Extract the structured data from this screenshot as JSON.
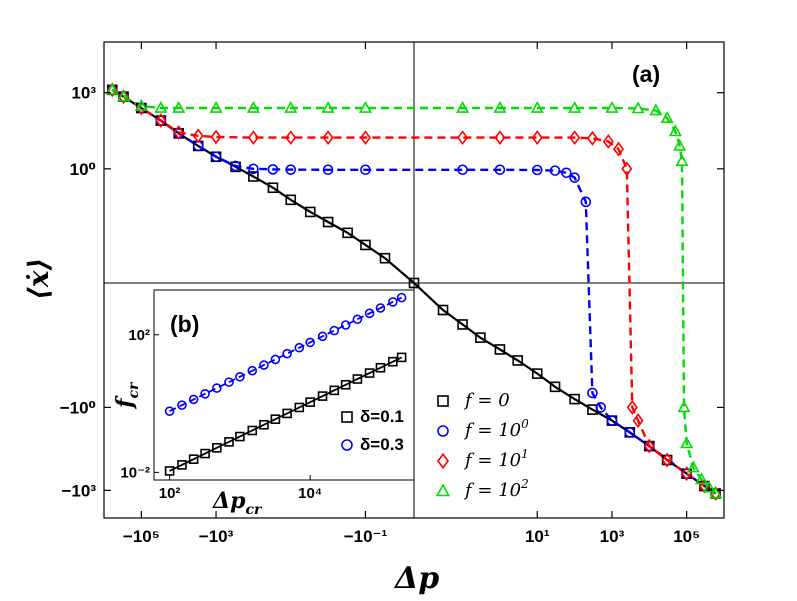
{
  "chart_data": [
    {
      "id": "a",
      "type": "scatter",
      "panel_label": "(a)",
      "xlabel": "Δp",
      "ylabel": "⟨ẋ⟩",
      "x_scale": "symlog",
      "y_scale": "symlog",
      "xlim": [
        -1000000,
        1000000
      ],
      "ylim": [
        -10000,
        100000
      ],
      "x_ticks": [
        -100000,
        -1000,
        -0.1,
        10,
        1000,
        100000
      ],
      "x_tick_labels": [
        "−10⁵",
        "−10³",
        "−10⁻¹",
        "10¹",
        "10³",
        "10⁵"
      ],
      "y_ticks": [
        -1000,
        -1,
        1,
        1000
      ],
      "y_tick_labels": [
        "−10³",
        "−10⁰",
        "10⁰",
        "10³"
      ],
      "legend_position": "bottom-right",
      "series": [
        {
          "name": "f = 0",
          "label_main": "f = 0",
          "label_sup": "",
          "marker": "square",
          "color": "#000000",
          "line": "solid",
          "points": [
            [
              -600000,
              1300
            ],
            [
              -300000,
              700
            ],
            [
              -100000,
              250
            ],
            [
              -30000,
              80
            ],
            [
              -10000,
              25
            ],
            [
              -3000,
              8
            ],
            [
              -1000,
              3
            ],
            [
              -300,
              1.2
            ],
            [
              -100,
              0.5
            ],
            [
              -30,
              0.18
            ],
            [
              -10,
              0.06
            ],
            [
              -3,
              0.02
            ],
            [
              -1,
              0.008
            ],
            [
              -0.3,
              0.003
            ],
            [
              -0.1,
              0.001
            ],
            [
              -0.03,
              0.0003
            ],
            [
              0,
              0
            ],
            [
              0.03,
              -0.0003
            ],
            [
              0.1,
              -0.001
            ],
            [
              0.3,
              -0.003
            ],
            [
              1,
              -0.008
            ],
            [
              3,
              -0.02
            ],
            [
              10,
              -0.06
            ],
            [
              30,
              -0.18
            ],
            [
              100,
              -0.5
            ],
            [
              300,
              -1.2
            ],
            [
              1000,
              -3
            ],
            [
              3000,
              -8
            ],
            [
              10000,
              -25
            ],
            [
              30000,
              -80
            ],
            [
              100000,
              -250
            ],
            [
              300000,
              -700
            ],
            [
              600000,
              -1300
            ]
          ]
        },
        {
          "name": "f = 10^0",
          "label_main": "f = 10",
          "label_sup": "0",
          "marker": "circle",
          "color": "#0000ff",
          "line": "dashed",
          "points": [
            [
              -600000,
              1300
            ],
            [
              -300000,
              700
            ],
            [
              -100000,
              250
            ],
            [
              -30000,
              80
            ],
            [
              -10000,
              25
            ],
            [
              -3000,
              8
            ],
            [
              -1000,
              3
            ],
            [
              -300,
              1.3
            ],
            [
              -100,
              1
            ],
            [
              -30,
              0.95
            ],
            [
              -10,
              0.93
            ],
            [
              -1,
              0.92
            ],
            [
              -0.1,
              0.92
            ],
            [
              0.1,
              0.92
            ],
            [
              1,
              0.92
            ],
            [
              10,
              0.9
            ],
            [
              30,
              0.85
            ],
            [
              60,
              0.7
            ],
            [
              100,
              0.45
            ],
            [
              200,
              0.05
            ],
            [
              300,
              -0.3
            ],
            [
              500,
              -1
            ],
            [
              1000,
              -3
            ],
            [
              3000,
              -8
            ],
            [
              10000,
              -25
            ],
            [
              100000,
              -250
            ],
            [
              600000,
              -1300
            ]
          ]
        },
        {
          "name": "f = 10^1",
          "label_main": "f = 10",
          "label_sup": "1",
          "marker": "diamond",
          "color": "#ff0000",
          "line": "dashed",
          "points": [
            [
              -600000,
              1300
            ],
            [
              -300000,
              700
            ],
            [
              -100000,
              250
            ],
            [
              -30000,
              80
            ],
            [
              -10000,
              27
            ],
            [
              -3000,
              20
            ],
            [
              -1000,
              18
            ],
            [
              -100,
              17
            ],
            [
              -10,
              17
            ],
            [
              -1,
              17
            ],
            [
              -0.1,
              17
            ],
            [
              0.1,
              17
            ],
            [
              1,
              17
            ],
            [
              10,
              17
            ],
            [
              100,
              17
            ],
            [
              300,
              16
            ],
            [
              800,
              12
            ],
            [
              1500,
              6
            ],
            [
              2500,
              1
            ],
            [
              3500,
              -1
            ],
            [
              5000,
              -3
            ],
            [
              10000,
              -25
            ],
            [
              30000,
              -80
            ],
            [
              100000,
              -250
            ],
            [
              300000,
              -700
            ],
            [
              600000,
              -1300
            ]
          ]
        },
        {
          "name": "f = 10^2",
          "label_main": "f = 10",
          "label_sup": "2",
          "marker": "triangle",
          "color": "#00dd00",
          "line": "dashed",
          "points": [
            [
              -600000,
              1300
            ],
            [
              -300000,
              700
            ],
            [
              -100000,
              300
            ],
            [
              -30000,
              250
            ],
            [
              -10000,
              250
            ],
            [
              -1000,
              250
            ],
            [
              -100,
              250
            ],
            [
              -10,
              250
            ],
            [
              -1,
              250
            ],
            [
              -0.1,
              250
            ],
            [
              0.1,
              250
            ],
            [
              1,
              250
            ],
            [
              10,
              250
            ],
            [
              100,
              250
            ],
            [
              1000,
              250
            ],
            [
              5000,
              240
            ],
            [
              15000,
              200
            ],
            [
              30000,
              100
            ],
            [
              50000,
              30
            ],
            [
              65000,
              8
            ],
            [
              75000,
              2
            ],
            [
              85000,
              -1
            ],
            [
              100000,
              -20
            ],
            [
              150000,
              -150
            ],
            [
              250000,
              -400
            ],
            [
              400000,
              -800
            ],
            [
              600000,
              -1300
            ]
          ]
        }
      ]
    },
    {
      "id": "b",
      "type": "scatter",
      "panel_label": "(b)",
      "xlabel": "Δp_cr",
      "ylabel": "f_cr",
      "x_scale": "log",
      "y_scale": "log",
      "xlim": [
        60,
        300000
      ],
      "ylim": [
        0.006,
        2000
      ],
      "x_ticks": [
        100,
        10000
      ],
      "x_tick_labels": [
        "10²",
        "10⁴"
      ],
      "y_ticks": [
        0.01,
        100
      ],
      "y_tick_labels": [
        "10⁻²",
        "10²"
      ],
      "legend_position": "bottom-right",
      "series": [
        {
          "name": "δ=0.1",
          "marker": "square",
          "color": "#000000",
          "line": "solid",
          "fit": {
            "x0": 100,
            "y0": 0.011,
            "slope": 1.0
          },
          "x": [
            100,
            150,
            220,
            320,
            470,
            700,
            1000,
            1500,
            2200,
            3200,
            4700,
            7000,
            10000,
            15000,
            22000,
            32000,
            47000,
            70000,
            100000,
            150000,
            200000
          ]
        },
        {
          "name": "δ=0.3",
          "marker": "circle",
          "color": "#0000ff",
          "line": "dashed",
          "fit": {
            "x0": 100,
            "y0": 0.6,
            "slope": 1.0
          },
          "x": [
            100,
            150,
            220,
            320,
            470,
            700,
            1000,
            1500,
            2200,
            3200,
            4700,
            7000,
            10000,
            15000,
            22000,
            32000,
            47000,
            70000,
            100000,
            150000,
            200000
          ]
        }
      ]
    }
  ]
}
